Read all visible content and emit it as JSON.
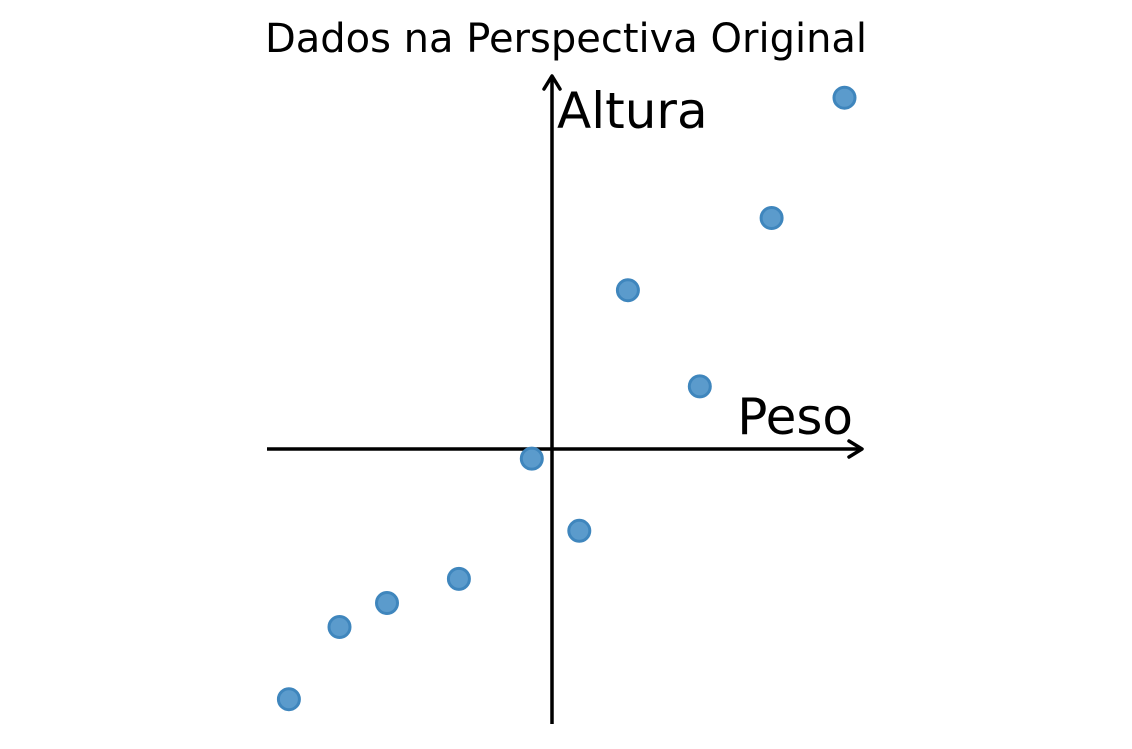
{
  "chart_data": {
    "type": "scatter",
    "title": "Dados na Perspectiva Original",
    "xlabel": "Peso",
    "ylabel": "Altura",
    "grid": false,
    "point_color": "#5b9bcc",
    "point_edge_color": "#3f86bd",
    "axes_color": "#000000",
    "xlim": [
      -2.8,
      3.1
    ],
    "ylim": [
      -2.7,
      3.5
    ],
    "series": [
      {
        "x": [
          -2.6,
          -2.1,
          -1.63,
          -0.92,
          -0.2,
          0.27,
          0.75,
          1.46,
          2.17,
          2.89
        ],
        "y": [
          -2.08,
          -1.48,
          -1.28,
          -1.08,
          -0.08,
          -0.68,
          1.32,
          0.52,
          1.92,
          2.92
        ]
      }
    ]
  }
}
